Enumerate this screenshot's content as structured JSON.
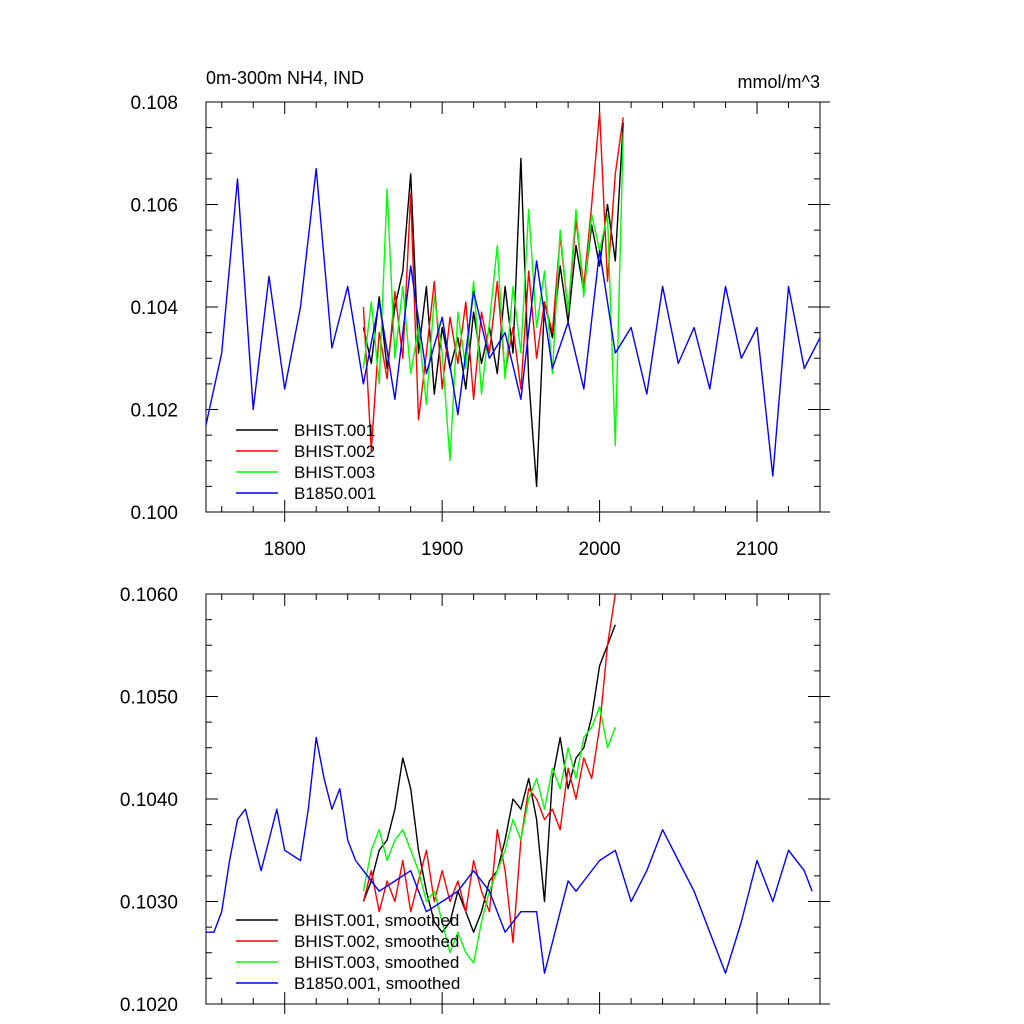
{
  "chart_data": [
    {
      "type": "line",
      "title": "0m-300m NH4, IND",
      "units": "mmol/m^3",
      "xlim": [
        1750,
        2140
      ],
      "ylim": [
        0.1,
        0.108
      ],
      "xticks": [
        1800,
        1900,
        2000,
        2100
      ],
      "xtick_labels": [
        "1800",
        "1900",
        "2000",
        "2100"
      ],
      "yticks": [
        0.1,
        0.102,
        0.104,
        0.106,
        0.108
      ],
      "ytick_labels": [
        "0.100",
        "0.102",
        "0.104",
        "0.106",
        "0.108"
      ],
      "grid": false,
      "legend_position": "bottom-left",
      "series": [
        {
          "name": "BHIST.001",
          "color": "#000000",
          "x": [
            1850,
            1855,
            1860,
            1865,
            1870,
            1875,
            1880,
            1885,
            1890,
            1895,
            1900,
            1905,
            1910,
            1915,
            1920,
            1925,
            1930,
            1935,
            1940,
            1945,
            1950,
            1955,
            1960,
            1965,
            1970,
            1975,
            1980,
            1985,
            1990,
            1995,
            2000,
            2005,
            2010,
            2015
          ],
          "y": [
            0.1036,
            0.1029,
            0.1042,
            0.1028,
            0.104,
            0.1047,
            0.1066,
            0.1031,
            0.1044,
            0.1023,
            0.1036,
            0.1028,
            0.1034,
            0.1024,
            0.1039,
            0.1029,
            0.1036,
            0.1027,
            0.1044,
            0.1031,
            0.1069,
            0.1026,
            0.1005,
            0.1041,
            0.1034,
            0.1048,
            0.1037,
            0.1052,
            0.1043,
            0.1056,
            0.1048,
            0.106,
            0.1049,
            0.1076
          ]
        },
        {
          "name": "BHIST.002",
          "color": "#ff0000",
          "x": [
            1850,
            1855,
            1860,
            1865,
            1870,
            1875,
            1880,
            1885,
            1890,
            1895,
            1900,
            1905,
            1910,
            1915,
            1920,
            1925,
            1930,
            1935,
            1940,
            1945,
            1950,
            1955,
            1960,
            1965,
            1970,
            1975,
            1980,
            1985,
            1990,
            1995,
            2000,
            2005,
            2010,
            2015
          ],
          "y": [
            0.104,
            0.1012,
            0.1035,
            0.1026,
            0.1043,
            0.103,
            0.1062,
            0.1018,
            0.1031,
            0.1045,
            0.1024,
            0.1038,
            0.1029,
            0.1041,
            0.1022,
            0.1039,
            0.1031,
            0.1045,
            0.1027,
            0.1036,
            0.1024,
            0.1047,
            0.103,
            0.1041,
            0.1035,
            0.1054,
            0.1039,
            0.1057,
            0.1044,
            0.106,
            0.1078,
            0.1045,
            0.1066,
            0.1077
          ]
        },
        {
          "name": "BHIST.003",
          "color": "#00ff00",
          "x": [
            1850,
            1855,
            1860,
            1865,
            1870,
            1875,
            1880,
            1885,
            1890,
            1895,
            1900,
            1905,
            1910,
            1915,
            1920,
            1925,
            1930,
            1935,
            1940,
            1945,
            1950,
            1955,
            1960,
            1965,
            1970,
            1975,
            1980,
            1985,
            1990,
            1995,
            2000,
            2005,
            2010,
            2015
          ],
          "y": [
            0.1028,
            0.1041,
            0.1025,
            0.1063,
            0.103,
            0.1044,
            0.1027,
            0.1036,
            0.1021,
            0.1042,
            0.1031,
            0.101,
            0.1039,
            0.1028,
            0.1045,
            0.1023,
            0.1037,
            0.1052,
            0.1026,
            0.1044,
            0.1031,
            0.1059,
            0.1036,
            0.1047,
            0.1027,
            0.1055,
            0.1039,
            0.1059,
            0.1042,
            0.1058,
            0.1051,
            0.1058,
            0.1013,
            0.1074
          ]
        },
        {
          "name": "B1850.001",
          "color": "#0000ff",
          "x": [
            1750,
            1760,
            1770,
            1780,
            1790,
            1800,
            1810,
            1820,
            1830,
            1840,
            1850,
            1860,
            1870,
            1880,
            1890,
            1900,
            1910,
            1920,
            1930,
            1940,
            1950,
            1960,
            1970,
            1980,
            1990,
            2000,
            2010,
            2020,
            2030,
            2040,
            2050,
            2060,
            2070,
            2080,
            2090,
            2100,
            2110,
            2120,
            2130,
            2140
          ],
          "y": [
            0.1017,
            0.1031,
            0.1065,
            0.102,
            0.1046,
            0.1024,
            0.104,
            0.1067,
            0.1032,
            0.1044,
            0.1025,
            0.1041,
            0.1022,
            0.1048,
            0.1027,
            0.1038,
            0.1019,
            0.1043,
            0.103,
            0.1035,
            0.1022,
            0.1049,
            0.1028,
            0.1037,
            0.1024,
            0.1051,
            0.1031,
            0.1036,
            0.1023,
            0.1044,
            0.1029,
            0.1036,
            0.1024,
            0.1044,
            0.103,
            0.1036,
            0.1007,
            0.1044,
            0.1028,
            0.1034
          ]
        }
      ]
    },
    {
      "type": "line",
      "title": "",
      "xlim": [
        1750,
        2140
      ],
      "ylim": [
        0.102,
        0.106
      ],
      "xticks": [
        1800,
        1900,
        2000,
        2100
      ],
      "xtick_labels": [],
      "yticks": [
        0.102,
        0.103,
        0.104,
        0.105,
        0.106
      ],
      "ytick_labels": [
        "0.1020",
        "0.1030",
        "0.1040",
        "0.1050",
        "0.1060"
      ],
      "grid": false,
      "legend_position": "bottom-left",
      "series": [
        {
          "name": "BHIST.001, smoothed",
          "color": "#000000",
          "x": [
            1850,
            1855,
            1860,
            1865,
            1870,
            1875,
            1880,
            1885,
            1890,
            1895,
            1900,
            1905,
            1910,
            1915,
            1920,
            1925,
            1930,
            1935,
            1940,
            1945,
            1950,
            1955,
            1960,
            1965,
            1970,
            1975,
            1980,
            1985,
            1990,
            1995,
            2000,
            2005,
            2010
          ],
          "y": [
            0.103,
            0.1032,
            0.1035,
            0.1036,
            0.1039,
            0.1044,
            0.1041,
            0.1035,
            0.1031,
            0.1028,
            0.1027,
            0.1028,
            0.1031,
            0.1029,
            0.1027,
            0.1029,
            0.1032,
            0.1033,
            0.1036,
            0.104,
            0.1039,
            0.1042,
            0.1038,
            0.103,
            0.1042,
            0.1046,
            0.1041,
            0.1044,
            0.1045,
            0.1048,
            0.1053,
            0.1055,
            0.1057
          ]
        },
        {
          "name": "BHIST.002, smoothed",
          "color": "#ff0000",
          "x": [
            1850,
            1855,
            1860,
            1865,
            1870,
            1875,
            1880,
            1885,
            1890,
            1895,
            1900,
            1905,
            1910,
            1915,
            1920,
            1925,
            1930,
            1935,
            1940,
            1945,
            1950,
            1955,
            1960,
            1965,
            1970,
            1975,
            1980,
            1985,
            1990,
            1995,
            2000,
            2005,
            2010
          ],
          "y": [
            0.103,
            0.1033,
            0.1029,
            0.1032,
            0.103,
            0.1034,
            0.1029,
            0.1032,
            0.1035,
            0.103,
            0.1033,
            0.103,
            0.1032,
            0.1029,
            0.1034,
            0.1031,
            0.1029,
            0.1037,
            0.1033,
            0.1026,
            0.1036,
            0.1041,
            0.104,
            0.1038,
            0.1039,
            0.1037,
            0.1043,
            0.104,
            0.1044,
            0.1042,
            0.1047,
            0.1055,
            0.106
          ]
        },
        {
          "name": "BHIST.003, smoothed",
          "color": "#00ff00",
          "x": [
            1850,
            1855,
            1860,
            1865,
            1870,
            1875,
            1880,
            1885,
            1890,
            1895,
            1900,
            1905,
            1910,
            1915,
            1920,
            1925,
            1930,
            1935,
            1940,
            1945,
            1950,
            1955,
            1960,
            1965,
            1970,
            1975,
            1980,
            1985,
            1990,
            1995,
            2000,
            2005,
            2010
          ],
          "y": [
            0.1031,
            0.1035,
            0.1037,
            0.1034,
            0.1036,
            0.1037,
            0.1035,
            0.1033,
            0.103,
            0.1031,
            0.1028,
            0.1025,
            0.1027,
            0.1025,
            0.1024,
            0.1028,
            0.1031,
            0.1033,
            0.1035,
            0.1038,
            0.1036,
            0.104,
            0.1042,
            0.1039,
            0.1043,
            0.1041,
            0.1045,
            0.1042,
            0.1046,
            0.1047,
            0.1049,
            0.1045,
            0.1047
          ]
        },
        {
          "name": "B1850.001, smoothed",
          "color": "#0000ff",
          "x": [
            1750,
            1755,
            1760,
            1765,
            1770,
            1775,
            1780,
            1785,
            1790,
            1795,
            1800,
            1810,
            1815,
            1820,
            1825,
            1830,
            1835,
            1840,
            1845,
            1850,
            1860,
            1870,
            1880,
            1890,
            1900,
            1910,
            1920,
            1930,
            1940,
            1950,
            1960,
            1965,
            1970,
            1975,
            1980,
            1985,
            1990,
            2000,
            2010,
            2020,
            2030,
            2040,
            2050,
            2060,
            2070,
            2080,
            2090,
            2100,
            2110,
            2120,
            2130,
            2135
          ],
          "y": [
            0.1027,
            0.1027,
            0.1029,
            0.1034,
            0.1038,
            0.1039,
            0.1036,
            0.1033,
            0.1036,
            0.1039,
            0.1035,
            0.1034,
            0.1039,
            0.1046,
            0.1042,
            0.1039,
            0.1041,
            0.1036,
            0.1034,
            0.1033,
            0.1031,
            0.1032,
            0.1033,
            0.1029,
            0.103,
            0.1031,
            0.1033,
            0.1031,
            0.1027,
            0.1029,
            0.1029,
            0.1023,
            0.1026,
            0.1029,
            0.1032,
            0.1031,
            0.1032,
            0.1034,
            0.1035,
            0.103,
            0.1033,
            0.1037,
            0.1034,
            0.1031,
            0.1027,
            0.1023,
            0.1028,
            0.1034,
            0.103,
            0.1035,
            0.1033,
            0.1031
          ]
        }
      ]
    }
  ]
}
